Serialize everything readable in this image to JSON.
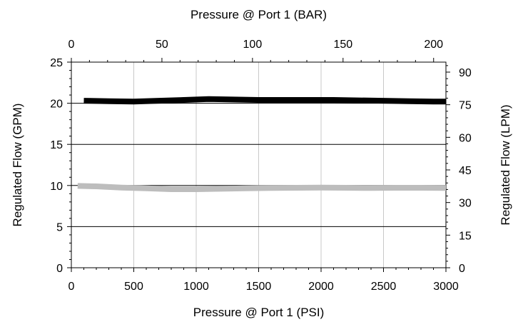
{
  "chart_data": {
    "type": "line",
    "title": "",
    "xlabel": "Pressure @ Port 1 (PSI)",
    "ylabel": "Regulated Flow (GPM)",
    "secondary_xlabel": "Pressure @ Port 1 (BAR)",
    "secondary_ylabel": "Regulated Flow (LPM)",
    "xlim": [
      0,
      3000
    ],
    "ylim": [
      0,
      25
    ],
    "secondary_xlim": [
      0,
      206.8
    ],
    "secondary_ylim": [
      0,
      94.6
    ],
    "x_ticks": [
      "0",
      "500",
      "1000",
      "1500",
      "2000",
      "2500",
      "3000"
    ],
    "y_ticks": [
      "0",
      "5",
      "10",
      "15",
      "20",
      "25"
    ],
    "secondary_x_ticks": [
      "0",
      "50",
      "100",
      "150",
      "200"
    ],
    "secondary_y_ticks": [
      "0",
      "15",
      "30",
      "45",
      "60",
      "75",
      "90"
    ],
    "grid": true,
    "legend": "none",
    "series": [
      {
        "color": "#000000",
        "x": [
          100,
          300,
          500,
          700,
          900,
          1100,
          1300,
          1500,
          1700,
          1900,
          2100,
          2300,
          2500,
          2700,
          2900,
          3000
        ],
        "values": [
          20.3,
          20.25,
          20.2,
          20.3,
          20.4,
          20.5,
          20.45,
          20.4,
          20.4,
          20.4,
          20.4,
          20.35,
          20.3,
          20.25,
          20.2,
          20.2
        ]
      },
      {
        "color": "#bdbdbd",
        "x": [
          50,
          200,
          400,
          600,
          800,
          1000,
          1200,
          1400,
          1600,
          1800,
          2000,
          2200,
          2400,
          2600,
          2800,
          3000
        ],
        "values": [
          9.95,
          9.9,
          9.75,
          9.65,
          9.55,
          9.55,
          9.6,
          9.65,
          9.7,
          9.72,
          9.75,
          9.72,
          9.7,
          9.72,
          9.72,
          9.7
        ]
      }
    ]
  }
}
